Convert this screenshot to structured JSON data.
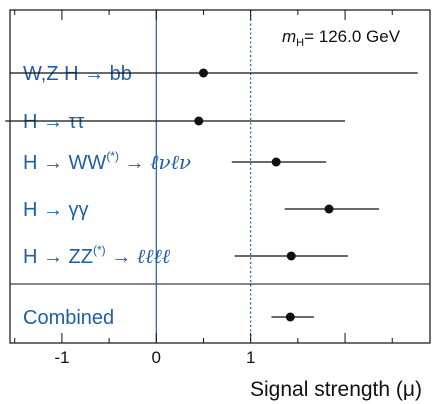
{
  "chart_data": {
    "type": "scatter",
    "title": "",
    "annotation": {
      "symbol": "m",
      "subscript": "H",
      "text": "= 126.0 GeV"
    },
    "xlabel": "Signal strength (μ)",
    "xlim": [
      -1.55,
      2.9
    ],
    "xticks": [
      -1,
      0,
      1
    ],
    "reference_lines": [
      {
        "x": 0,
        "style": "solid",
        "color": "#1f5fa8"
      },
      {
        "x": 1,
        "style": "dotted",
        "color": "#1f5fa8"
      }
    ],
    "categories": [
      {
        "id": "wzh-bb",
        "parts": [
          {
            "t": "W,Z H → bb"
          }
        ]
      },
      {
        "id": "h-tautau",
        "parts": [
          {
            "t": "H → ττ"
          }
        ]
      },
      {
        "id": "h-ww",
        "parts": [
          {
            "t": "H → WW"
          },
          {
            "t": "(*)",
            "sup": true
          },
          {
            "t": " → ℓνℓν",
            "italicPart": "ℓνℓν"
          }
        ]
      },
      {
        "id": "h-gamgam",
        "parts": [
          {
            "t": "H → γγ"
          }
        ]
      },
      {
        "id": "h-zz",
        "parts": [
          {
            "t": "H → ZZ"
          },
          {
            "t": "(*)",
            "sup": true
          },
          {
            "t": " → ℓℓℓℓ",
            "italicPart": "ℓℓℓℓ"
          }
        ]
      },
      {
        "id": "combined",
        "parts": [
          {
            "t": "Combined"
          }
        ]
      }
    ],
    "values": [
      0.5,
      0.45,
      1.27,
      1.83,
      1.43,
      1.42
    ],
    "err_low": [
      2.05,
      2.05,
      0.47,
      0.47,
      0.6,
      0.2
    ],
    "err_high": [
      2.27,
      1.55,
      0.53,
      0.53,
      0.6,
      0.25
    ]
  },
  "colors": {
    "accent": "#1f5fa8",
    "marker": "#111111",
    "frame": "#111111"
  }
}
